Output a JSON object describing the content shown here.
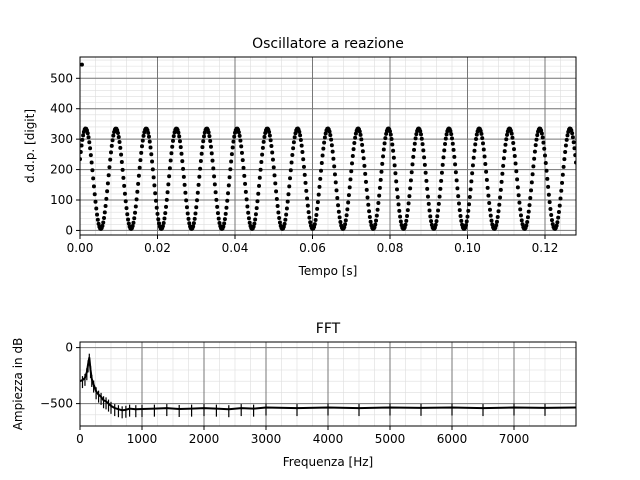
{
  "chart_data": [
    {
      "type": "scatter",
      "title": "Oscillatore a reazione",
      "xlabel": "Tempo [s]",
      "ylabel": "d.d.p. [digit]",
      "xlim": [
        0,
        0.128
      ],
      "ylim": [
        -15,
        570
      ],
      "xticks": [
        0.0,
        0.02,
        0.04,
        0.06,
        0.08,
        0.1,
        0.12
      ],
      "xtick_labels": [
        "0.00",
        "0.02",
        "0.04",
        "0.06",
        "0.08",
        "0.10",
        "0.12"
      ],
      "yticks": [
        0,
        100,
        200,
        300,
        400,
        500
      ],
      "ytick_labels": [
        "0",
        "100",
        "200",
        "300",
        "400",
        "500"
      ],
      "grid": true,
      "series": [
        {
          "signal": {
            "frequency_hz": 128,
            "offset": 170,
            "amplitude": 165,
            "phase_rad": 0.4,
            "sample_step_s": 0.0002
          },
          "outlier_points": [
            {
              "x": 0.0005,
              "y": 545
            }
          ],
          "color": "#000000"
        }
      ]
    },
    {
      "type": "line",
      "title": "FFT",
      "xlabel": "Frequenza [Hz]",
      "ylabel": "Ampiezza in dB",
      "xlim": [
        0,
        8000
      ],
      "ylim": [
        -700,
        50
      ],
      "xticks": [
        0,
        1000,
        2000,
        3000,
        4000,
        5000,
        6000,
        7000
      ],
      "xtick_labels": [
        "0",
        "1000",
        "2000",
        "3000",
        "4000",
        "5000",
        "6000",
        "7000"
      ],
      "yticks": [
        0,
        -500
      ],
      "ytick_labels": [
        "0",
        "−500"
      ],
      "grid": true,
      "series": [
        {
          "color": "#000000",
          "x": [
            0,
            40,
            80,
            110,
            130,
            150,
            170,
            190,
            220,
            260,
            300,
            340,
            380,
            420,
            460,
            500,
            560,
            620,
            680,
            740,
            800,
            900,
            1000,
            1200,
            1400,
            1600,
            1800,
            2000,
            2200,
            2400,
            2600,
            2800,
            3000,
            3500,
            4000,
            4500,
            5000,
            5500,
            6000,
            6500,
            7000,
            7500,
            8000
          ],
          "y": [
            -300,
            -290,
            -270,
            -220,
            -150,
            -90,
            -200,
            -280,
            -330,
            -390,
            -420,
            -440,
            -470,
            -480,
            -500,
            -520,
            -540,
            -550,
            -560,
            -555,
            -545,
            -550,
            -548,
            -545,
            -540,
            -548,
            -545,
            -540,
            -545,
            -550,
            -540,
            -545,
            -535,
            -540,
            -535,
            -540,
            -535,
            -538,
            -535,
            -540,
            -535,
            -538,
            -535
          ]
        }
      ]
    }
  ]
}
